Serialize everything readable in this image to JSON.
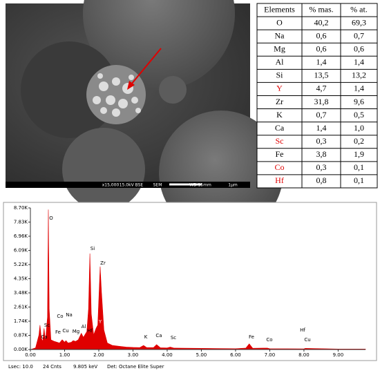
{
  "sem": {
    "labels": [
      "x15,000",
      "15.0kV BSE",
      "SEM",
      "WD 15mm"
    ],
    "scale": "1µm"
  },
  "table": {
    "header": [
      "Elements",
      "% mas.",
      "% at."
    ],
    "rows": [
      [
        "O",
        "40,2",
        "69,3"
      ],
      [
        "Na",
        "0,6",
        "0,7"
      ],
      [
        "Mg",
        "0,6",
        "0,6"
      ],
      [
        "Al",
        "1,4",
        "1,4"
      ],
      [
        "Si",
        "13,5",
        "13,2"
      ],
      [
        "Y",
        "4,7",
        "1,4"
      ],
      [
        "Zr",
        "31,8",
        "9,6"
      ],
      [
        "K",
        "0,7",
        "0,5"
      ],
      [
        "Ca",
        "1,4",
        "1,0"
      ],
      [
        "Sc",
        "0,3",
        "0,2"
      ],
      [
        "Fe",
        "3,8",
        "1,9"
      ],
      [
        "Co",
        "0,3",
        "0,1"
      ],
      [
        "Hf",
        "0,8",
        "0,1"
      ]
    ],
    "row_colors": [
      "#000000",
      "#000000",
      "#000000",
      "#000000",
      "#000000",
      "#e00000",
      "#000000",
      "#000000",
      "#000000",
      "#e00000",
      "#000000",
      "#e00000",
      "#e00000"
    ]
  },
  "chart_data": {
    "type": "area",
    "color": "#e00000",
    "x": [
      0,
      0.15,
      0.25,
      0.28,
      0.32,
      0.36,
      0.4,
      0.44,
      0.5,
      0.525,
      0.55,
      0.6,
      0.7,
      0.78,
      0.85,
      0.93,
      1.0,
      1.04,
      1.1,
      1.2,
      1.25,
      1.32,
      1.4,
      1.49,
      1.55,
      1.65,
      1.7,
      1.74,
      1.78,
      1.85,
      1.92,
      1.97,
      2.04,
      2.08,
      2.15,
      2.25,
      2.4,
      2.6,
      2.8,
      3.0,
      3.2,
      3.31,
      3.4,
      3.6,
      3.69,
      3.8,
      4.0,
      4.09,
      4.2,
      5.0,
      6.0,
      6.3,
      6.4,
      6.5,
      6.93,
      7.0,
      8.0,
      8.04,
      9.0,
      9.8
    ],
    "values": [
      0,
      100,
      900,
      1500,
      700,
      500,
      1300,
      500,
      2000,
      8600,
      2500,
      600,
      500,
      450,
      400,
      600,
      450,
      550,
      400,
      450,
      550,
      500,
      600,
      1000,
      750,
      1100,
      2500,
      5900,
      2200,
      900,
      1300,
      1500,
      5100,
      3500,
      1200,
      400,
      250,
      200,
      150,
      130,
      120,
      250,
      120,
      120,
      300,
      110,
      100,
      150,
      90,
      70,
      50,
      90,
      350,
      80,
      90,
      50,
      40,
      70,
      30,
      30
    ],
    "xlim": [
      0,
      9.8
    ],
    "xticks": [
      {
        "value": 0,
        "label": "0.00"
      },
      {
        "value": 1,
        "label": "1.00"
      },
      {
        "value": 2,
        "label": "2.00"
      },
      {
        "value": 3,
        "label": "3.00"
      },
      {
        "value": 4,
        "label": "4.00"
      },
      {
        "value": 5,
        "label": "5.00"
      },
      {
        "value": 6,
        "label": "6.00"
      },
      {
        "value": 7,
        "label": "7.00"
      },
      {
        "value": 8,
        "label": "8.00"
      },
      {
        "value": 9,
        "label": "9.00"
      }
    ],
    "ylim": [
      0,
      8700
    ],
    "yticks": [
      {
        "value": 0,
        "label": "0.00K"
      },
      {
        "value": 870,
        "label": "0.87K"
      },
      {
        "value": 1740,
        "label": "1.74K"
      },
      {
        "value": 2610,
        "label": "2.61K"
      },
      {
        "value": 3480,
        "label": "3.48K"
      },
      {
        "value": 4350,
        "label": "4.35K"
      },
      {
        "value": 5220,
        "label": "5.22K"
      },
      {
        "value": 6090,
        "label": "6.09K"
      },
      {
        "value": 6960,
        "label": "6.96K"
      },
      {
        "value": 7830,
        "label": "7.83K"
      },
      {
        "value": 8700,
        "label": "8.70K"
      }
    ],
    "annotations": [
      "O",
      "Si",
      "Zr",
      "Co",
      "Na",
      "Sc",
      "Fe",
      "Cu",
      "Mg",
      "Al",
      "Hf",
      "Y",
      "Ca",
      "K",
      "Ca",
      "Sc",
      "Fe",
      "Co",
      "Hf",
      "Cu"
    ],
    "footer": [
      "Lsec: 10.0",
      "24 Cnts",
      "9.805 keV",
      "Det: Octane Elite Super"
    ]
  }
}
